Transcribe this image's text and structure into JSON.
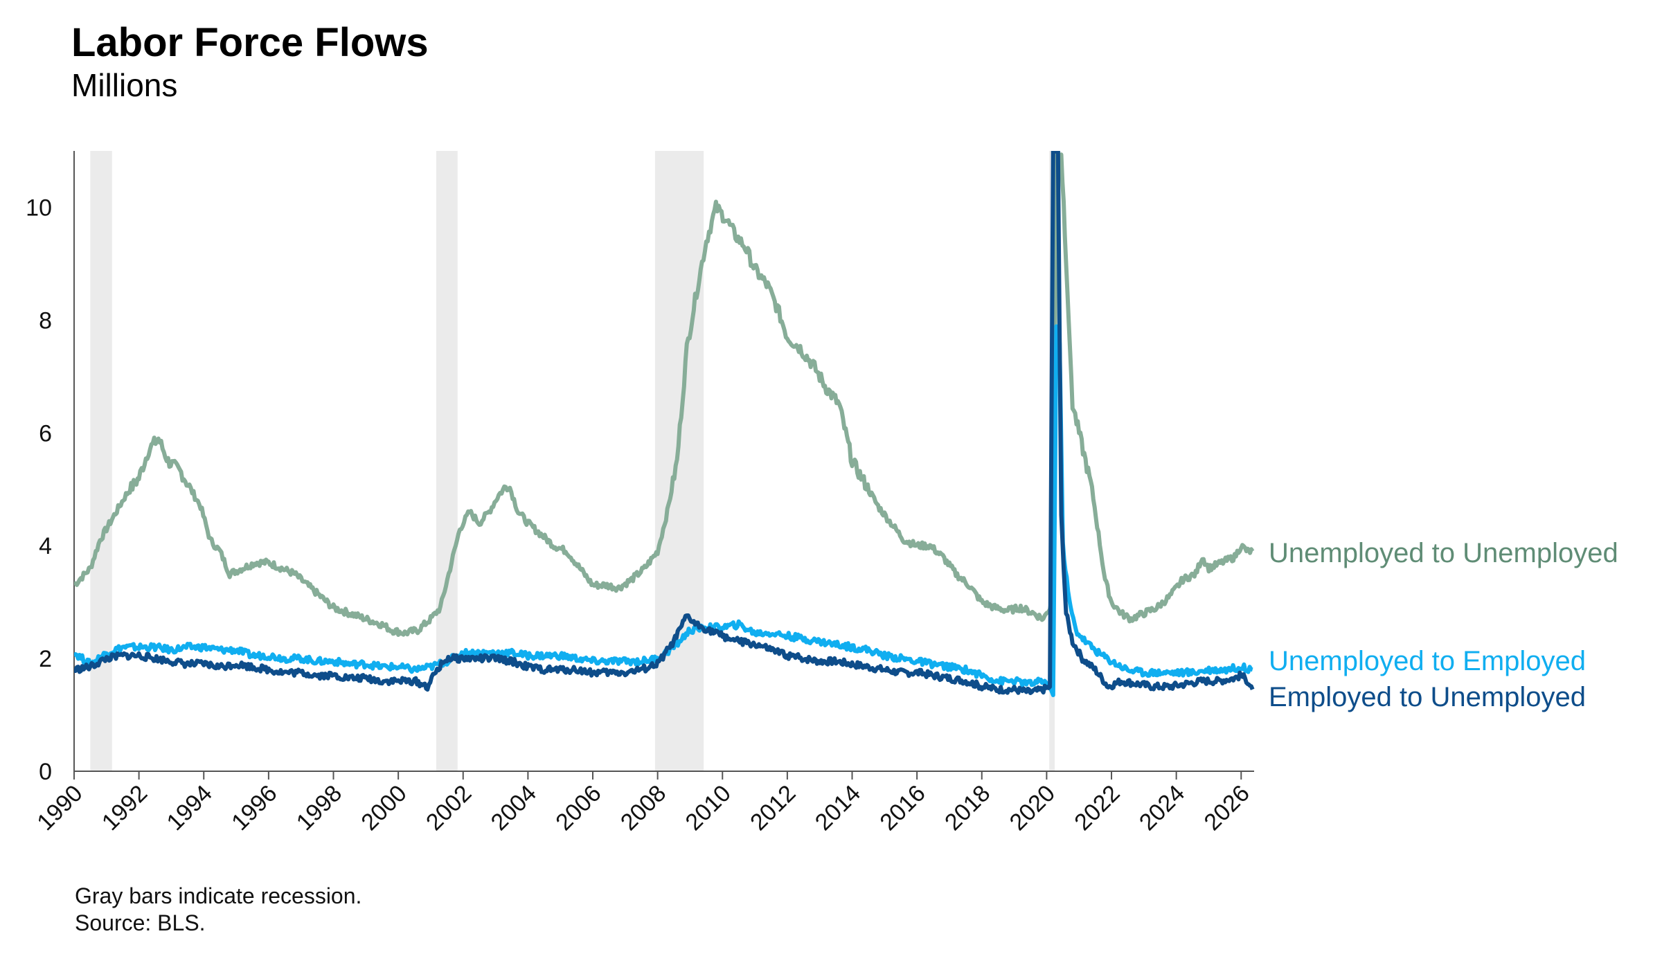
{
  "chart_data": {
    "type": "line",
    "title": "Labor Force Flows",
    "subtitle": "Millions",
    "xlabel": "",
    "ylabel": "",
    "xlim": [
      1990,
      2026.4
    ],
    "ylim": [
      0,
      11
    ],
    "y_ticks": [
      0,
      2,
      4,
      6,
      8,
      10
    ],
    "x_ticks": [
      1990,
      1992,
      1994,
      1996,
      1998,
      2000,
      2002,
      2004,
      2006,
      2008,
      2010,
      2012,
      2014,
      2016,
      2018,
      2020,
      2022,
      2024,
      2026
    ],
    "grid": false,
    "legend": "direct labels at right end of lines",
    "recessions": [
      [
        1990.5,
        1991.17
      ],
      [
        2001.17,
        2001.83
      ],
      [
        2007.92,
        2009.42
      ],
      [
        2020.08,
        2020.25
      ]
    ],
    "series": [
      {
        "name": "Unemployed to Unemployed",
        "color": "#87ad98",
        "label_color": "#5f8c75",
        "points": [
          [
            1990.0,
            3.3
          ],
          [
            1990.5,
            3.6
          ],
          [
            1990.8,
            4.1
          ],
          [
            1991.2,
            4.5
          ],
          [
            1991.6,
            4.9
          ],
          [
            1992.0,
            5.2
          ],
          [
            1992.3,
            5.7
          ],
          [
            1992.6,
            5.9
          ],
          [
            1992.9,
            5.5
          ],
          [
            1993.3,
            5.3
          ],
          [
            1993.6,
            5.0
          ],
          [
            1993.9,
            4.7
          ],
          [
            1994.2,
            4.1
          ],
          [
            1994.5,
            3.9
          ],
          [
            1994.8,
            3.5
          ],
          [
            1995.2,
            3.6
          ],
          [
            1995.6,
            3.7
          ],
          [
            1996.0,
            3.7
          ],
          [
            1996.4,
            3.6
          ],
          [
            1996.8,
            3.5
          ],
          [
            1997.2,
            3.3
          ],
          [
            1997.6,
            3.1
          ],
          [
            1998.0,
            2.9
          ],
          [
            1998.5,
            2.8
          ],
          [
            1999.0,
            2.7
          ],
          [
            1999.5,
            2.6
          ],
          [
            1999.8,
            2.5
          ],
          [
            2000.2,
            2.45
          ],
          [
            2000.6,
            2.5
          ],
          [
            2001.0,
            2.7
          ],
          [
            2001.3,
            2.9
          ],
          [
            2001.6,
            3.6
          ],
          [
            2001.9,
            4.3
          ],
          [
            2002.2,
            4.6
          ],
          [
            2002.5,
            4.4
          ],
          [
            2002.8,
            4.6
          ],
          [
            2003.1,
            4.9
          ],
          [
            2003.4,
            5.1
          ],
          [
            2003.7,
            4.6
          ],
          [
            2004.0,
            4.4
          ],
          [
            2004.4,
            4.2
          ],
          [
            2004.8,
            4.0
          ],
          [
            2005.2,
            3.9
          ],
          [
            2005.6,
            3.6
          ],
          [
            2006.0,
            3.3
          ],
          [
            2006.4,
            3.3
          ],
          [
            2006.8,
            3.25
          ],
          [
            2007.2,
            3.4
          ],
          [
            2007.6,
            3.6
          ],
          [
            2008.0,
            3.9
          ],
          [
            2008.3,
            4.6
          ],
          [
            2008.6,
            5.5
          ],
          [
            2008.9,
            7.5
          ],
          [
            2009.2,
            8.5
          ],
          [
            2009.5,
            9.4
          ],
          [
            2009.8,
            10.0
          ],
          [
            2010.1,
            9.8
          ],
          [
            2010.4,
            9.5
          ],
          [
            2010.7,
            9.3
          ],
          [
            2011.0,
            8.9
          ],
          [
            2011.4,
            8.6
          ],
          [
            2011.7,
            8.2
          ],
          [
            2012.0,
            7.7
          ],
          [
            2012.4,
            7.5
          ],
          [
            2012.8,
            7.2
          ],
          [
            2013.2,
            6.8
          ],
          [
            2013.6,
            6.5
          ],
          [
            2014.0,
            5.5
          ],
          [
            2014.4,
            5.1
          ],
          [
            2014.8,
            4.7
          ],
          [
            2015.2,
            4.4
          ],
          [
            2015.6,
            4.1
          ],
          [
            2016.0,
            4.0
          ],
          [
            2016.4,
            4.0
          ],
          [
            2016.8,
            3.8
          ],
          [
            2017.2,
            3.5
          ],
          [
            2017.6,
            3.3
          ],
          [
            2018.0,
            3.0
          ],
          [
            2018.4,
            2.9
          ],
          [
            2018.8,
            2.85
          ],
          [
            2019.2,
            2.9
          ],
          [
            2019.6,
            2.8
          ],
          [
            2019.9,
            2.7
          ],
          [
            2020.0,
            2.8
          ],
          [
            2020.1,
            2.9
          ],
          [
            2020.2,
            3.2
          ],
          [
            2020.3,
            11.0
          ],
          [
            2020.45,
            11.0
          ],
          [
            2020.6,
            9.0
          ],
          [
            2020.8,
            6.5
          ],
          [
            2021.0,
            6.0
          ],
          [
            2021.2,
            5.5
          ],
          [
            2021.4,
            5.0
          ],
          [
            2021.6,
            4.2
          ],
          [
            2021.8,
            3.4
          ],
          [
            2022.0,
            3.0
          ],
          [
            2022.3,
            2.8
          ],
          [
            2022.6,
            2.7
          ],
          [
            2023.0,
            2.8
          ],
          [
            2023.4,
            2.9
          ],
          [
            2023.8,
            3.1
          ],
          [
            2024.2,
            3.4
          ],
          [
            2024.6,
            3.5
          ],
          [
            2024.8,
            3.8
          ],
          [
            2025.0,
            3.6
          ],
          [
            2025.4,
            3.7
          ],
          [
            2025.8,
            3.8
          ],
          [
            2026.0,
            4.0
          ],
          [
            2026.2,
            3.9
          ],
          [
            2026.35,
            3.9
          ]
        ]
      },
      {
        "name": "Unemployed to Employed",
        "color": "#10aef0",
        "label_color": "#10aef0",
        "points": [
          [
            1990.0,
            2.1
          ],
          [
            1990.5,
            1.9
          ],
          [
            1991.0,
            2.1
          ],
          [
            1991.5,
            2.2
          ],
          [
            1992.0,
            2.2
          ],
          [
            1992.5,
            2.2
          ],
          [
            1993.0,
            2.15
          ],
          [
            1993.5,
            2.2
          ],
          [
            1994.0,
            2.2
          ],
          [
            1994.5,
            2.15
          ],
          [
            1995.0,
            2.15
          ],
          [
            1995.5,
            2.05
          ],
          [
            1996.0,
            2.05
          ],
          [
            1996.5,
            2.0
          ],
          [
            1997.0,
            2.0
          ],
          [
            1997.5,
            1.95
          ],
          [
            1998.0,
            1.95
          ],
          [
            1998.5,
            1.9
          ],
          [
            1999.0,
            1.9
          ],
          [
            1999.5,
            1.85
          ],
          [
            2000.0,
            1.85
          ],
          [
            2000.5,
            1.8
          ],
          [
            2001.0,
            1.85
          ],
          [
            2001.5,
            1.95
          ],
          [
            2002.0,
            2.1
          ],
          [
            2002.5,
            2.1
          ],
          [
            2003.0,
            2.1
          ],
          [
            2003.5,
            2.1
          ],
          [
            2004.0,
            2.05
          ],
          [
            2004.5,
            2.05
          ],
          [
            2005.0,
            2.05
          ],
          [
            2005.5,
            2.0
          ],
          [
            2006.0,
            1.95
          ],
          [
            2006.5,
            1.95
          ],
          [
            2007.0,
            1.95
          ],
          [
            2007.5,
            1.95
          ],
          [
            2008.0,
            2.0
          ],
          [
            2008.5,
            2.2
          ],
          [
            2009.0,
            2.5
          ],
          [
            2009.5,
            2.55
          ],
          [
            2010.0,
            2.55
          ],
          [
            2010.5,
            2.6
          ],
          [
            2011.0,
            2.45
          ],
          [
            2011.5,
            2.45
          ],
          [
            2012.0,
            2.4
          ],
          [
            2012.5,
            2.35
          ],
          [
            2013.0,
            2.3
          ],
          [
            2013.5,
            2.25
          ],
          [
            2014.0,
            2.2
          ],
          [
            2014.5,
            2.15
          ],
          [
            2015.0,
            2.05
          ],
          [
            2015.5,
            2.0
          ],
          [
            2016.0,
            1.95
          ],
          [
            2016.5,
            1.9
          ],
          [
            2017.0,
            1.85
          ],
          [
            2017.5,
            1.8
          ],
          [
            2018.0,
            1.7
          ],
          [
            2018.5,
            1.6
          ],
          [
            2019.0,
            1.6
          ],
          [
            2019.5,
            1.55
          ],
          [
            2019.9,
            1.6
          ],
          [
            2020.1,
            1.5
          ],
          [
            2020.2,
            1.35
          ],
          [
            2020.3,
            7.8
          ],
          [
            2020.4,
            7.6
          ],
          [
            2020.5,
            4.0
          ],
          [
            2020.7,
            3.0
          ],
          [
            2020.9,
            2.5
          ],
          [
            2021.2,
            2.3
          ],
          [
            2021.6,
            2.1
          ],
          [
            2022.0,
            1.95
          ],
          [
            2022.5,
            1.8
          ],
          [
            2023.0,
            1.75
          ],
          [
            2023.5,
            1.75
          ],
          [
            2024.0,
            1.75
          ],
          [
            2024.5,
            1.75
          ],
          [
            2025.0,
            1.8
          ],
          [
            2025.5,
            1.8
          ],
          [
            2026.0,
            1.85
          ],
          [
            2026.35,
            1.8
          ]
        ]
      },
      {
        "name": "Employed to Unemployed",
        "color": "#0e4d8a",
        "label_color": "#0e4d8a",
        "points": [
          [
            1990.0,
            1.8
          ],
          [
            1990.5,
            1.85
          ],
          [
            1991.0,
            2.0
          ],
          [
            1991.5,
            2.05
          ],
          [
            1992.0,
            2.05
          ],
          [
            1992.5,
            2.0
          ],
          [
            1993.0,
            1.95
          ],
          [
            1993.5,
            1.9
          ],
          [
            1994.0,
            1.9
          ],
          [
            1994.5,
            1.85
          ],
          [
            1995.0,
            1.9
          ],
          [
            1995.5,
            1.85
          ],
          [
            1996.0,
            1.8
          ],
          [
            1996.5,
            1.75
          ],
          [
            1997.0,
            1.75
          ],
          [
            1997.5,
            1.7
          ],
          [
            1998.0,
            1.7
          ],
          [
            1998.5,
            1.65
          ],
          [
            1999.0,
            1.65
          ],
          [
            1999.5,
            1.6
          ],
          [
            2000.0,
            1.6
          ],
          [
            2000.5,
            1.6
          ],
          [
            2000.9,
            1.5
          ],
          [
            2001.2,
            1.8
          ],
          [
            2001.5,
            2.0
          ],
          [
            2002.0,
            2.0
          ],
          [
            2002.5,
            2.0
          ],
          [
            2003.0,
            2.0
          ],
          [
            2003.5,
            1.95
          ],
          [
            2004.0,
            1.85
          ],
          [
            2004.5,
            1.8
          ],
          [
            2005.0,
            1.8
          ],
          [
            2005.5,
            1.8
          ],
          [
            2006.0,
            1.75
          ],
          [
            2006.5,
            1.75
          ],
          [
            2007.0,
            1.75
          ],
          [
            2007.5,
            1.8
          ],
          [
            2008.0,
            1.9
          ],
          [
            2008.5,
            2.3
          ],
          [
            2008.9,
            2.75
          ],
          [
            2009.2,
            2.6
          ],
          [
            2009.6,
            2.5
          ],
          [
            2010.0,
            2.4
          ],
          [
            2010.5,
            2.3
          ],
          [
            2011.0,
            2.25
          ],
          [
            2011.5,
            2.15
          ],
          [
            2012.0,
            2.05
          ],
          [
            2012.5,
            2.0
          ],
          [
            2013.0,
            1.95
          ],
          [
            2013.5,
            1.95
          ],
          [
            2014.0,
            1.9
          ],
          [
            2014.5,
            1.85
          ],
          [
            2015.0,
            1.8
          ],
          [
            2015.5,
            1.75
          ],
          [
            2016.0,
            1.75
          ],
          [
            2016.5,
            1.7
          ],
          [
            2017.0,
            1.65
          ],
          [
            2017.5,
            1.6
          ],
          [
            2018.0,
            1.5
          ],
          [
            2018.5,
            1.45
          ],
          [
            2019.0,
            1.45
          ],
          [
            2019.5,
            1.4
          ],
          [
            2019.9,
            1.45
          ],
          [
            2020.1,
            1.5
          ],
          [
            2020.2,
            11.0
          ],
          [
            2020.35,
            11.0
          ],
          [
            2020.45,
            4.5
          ],
          [
            2020.6,
            2.8
          ],
          [
            2020.8,
            2.3
          ],
          [
            2021.1,
            2.0
          ],
          [
            2021.5,
            1.8
          ],
          [
            2021.9,
            1.5
          ],
          [
            2022.3,
            1.6
          ],
          [
            2022.8,
            1.55
          ],
          [
            2023.3,
            1.5
          ],
          [
            2023.8,
            1.5
          ],
          [
            2024.3,
            1.55
          ],
          [
            2024.8,
            1.6
          ],
          [
            2025.3,
            1.6
          ],
          [
            2025.8,
            1.65
          ],
          [
            2026.0,
            1.7
          ],
          [
            2026.2,
            1.6
          ],
          [
            2026.35,
            1.45
          ]
        ]
      }
    ],
    "notes": [
      "Gray bars indicate recession.",
      "Source: BLS."
    ]
  }
}
